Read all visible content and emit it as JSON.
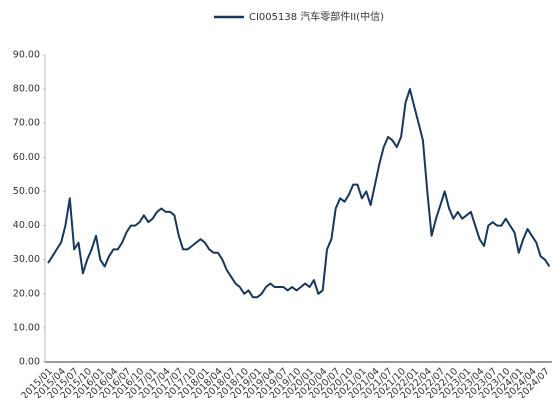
{
  "chart_data": {
    "type": "line",
    "categories": [
      "2015/01",
      null,
      null,
      "2015/04",
      null,
      null,
      "2015/07",
      null,
      null,
      "2015/10",
      null,
      null,
      "2016/01",
      null,
      null,
      "2016/04",
      null,
      null,
      "2016/07",
      null,
      null,
      "2016/10",
      null,
      null,
      "2017/01",
      null,
      null,
      "2017/04",
      null,
      null,
      "2017/07",
      null,
      null,
      "2017/10",
      null,
      null,
      "2018/01",
      null,
      null,
      "2018/04",
      null,
      null,
      "2018/07",
      null,
      null,
      "2018/10",
      null,
      null,
      "2019/01",
      null,
      null,
      "2019/04",
      null,
      null,
      "2019/07",
      null,
      null,
      "2019/10",
      null,
      null,
      "2020/01",
      null,
      null,
      "2020/04",
      null,
      null,
      "2020/07",
      null,
      null,
      "2020/10",
      null,
      null,
      "2021/01",
      null,
      null,
      "2021/04",
      null,
      null,
      "2021/07",
      null,
      null,
      "2021/10",
      null,
      null,
      "2022/01",
      null,
      null,
      "2022/04",
      null,
      null,
      "2022/07",
      null,
      null,
      "2022/10",
      null,
      null,
      "2023/01",
      null,
      null,
      "2023/04",
      null,
      null,
      "2023/07",
      null,
      null,
      "2023/10",
      null,
      null,
      "2024/01",
      null,
      null,
      "2024/04",
      null,
      null,
      "2024/07",
      null
    ],
    "series": [
      {
        "name": "CI005138 汽车零部件II(中信)",
        "color": "#17375e",
        "values": [
          29,
          31,
          33,
          35,
          40,
          48,
          33,
          35,
          26,
          30,
          33,
          37,
          30,
          28,
          31,
          33,
          33,
          35,
          38,
          40,
          40,
          41,
          43,
          41,
          42,
          44,
          45,
          44,
          44,
          43,
          37,
          33,
          33,
          34,
          35,
          36,
          35,
          33,
          32,
          32,
          30,
          27,
          25,
          23,
          22,
          20,
          21,
          19,
          19,
          20,
          22,
          23,
          22,
          22,
          22,
          21,
          22,
          21,
          22,
          23,
          22,
          24,
          20,
          21,
          33,
          36,
          45,
          48,
          47,
          49,
          52,
          52,
          48,
          50,
          46,
          52,
          58,
          63,
          66,
          65,
          63,
          66,
          76,
          80,
          75,
          70,
          65,
          50,
          37,
          42,
          46,
          50,
          45,
          42,
          44,
          42,
          43,
          44,
          40,
          36,
          34,
          40,
          41,
          40,
          40,
          42,
          40,
          38,
          32,
          36,
          39,
          37,
          35,
          31,
          30,
          28
        ]
      }
    ],
    "ylim": [
      0,
      90
    ],
    "yticks": [
      {
        "value": 0,
        "label": "0.00"
      },
      {
        "value": 10,
        "label": "10.00"
      },
      {
        "value": 20,
        "label": "20.00"
      },
      {
        "value": 30,
        "label": "30.00"
      },
      {
        "value": 40,
        "label": "40.00"
      },
      {
        "value": 50,
        "label": "50.00"
      },
      {
        "value": 60,
        "label": "60.00"
      },
      {
        "value": 70,
        "label": "70.00"
      },
      {
        "value": 80,
        "label": "80.00"
      },
      {
        "value": 90,
        "label": "90.00"
      }
    ]
  }
}
